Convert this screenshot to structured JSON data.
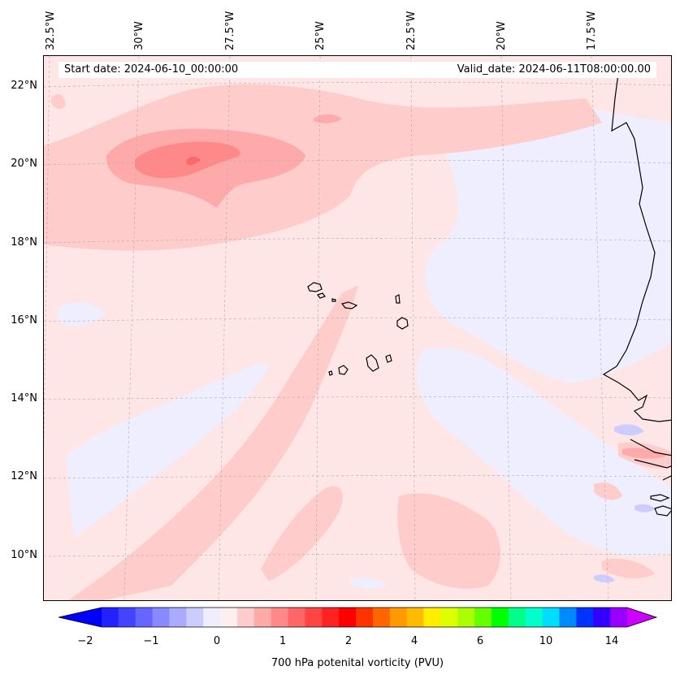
{
  "map": {
    "start_date_label": "Start date: 2024-06-10_00:00:00",
    "valid_date_label": "Valid_date: 2024-06-11T08:00:00.00",
    "longitude_labels": [
      "32.5°W",
      "30°W",
      "27.5°W",
      "25°W",
      "22.5°W",
      "20°W",
      "17.5°W"
    ],
    "latitude_labels": [
      "22°N",
      "20°N",
      "18°N",
      "16°N",
      "14°N",
      "12°N",
      "10°N"
    ],
    "background_color": "#ffe6e6"
  },
  "colorbar": {
    "label": "700 hPa potenital vorticity (PVU)",
    "tick_labels": [
      "−2",
      "−1",
      "0",
      "1",
      "2",
      "4",
      "6",
      "10",
      "14"
    ],
    "colors": [
      "#2222ff",
      "#4444ff",
      "#6666ff",
      "#8888ff",
      "#aaaaff",
      "#ccccff",
      "#eeeeff",
      "#ffeeee",
      "#ffcccc",
      "#ffaaaa",
      "#ff8888",
      "#ff6666",
      "#ff4444",
      "#ff2222",
      "#ff0000",
      "#ff3300",
      "#ff6600",
      "#ff9900",
      "#ffbb00",
      "#ffee00",
      "#ddff00",
      "#aaff00",
      "#66ff00",
      "#00ff00",
      "#00ff88",
      "#00ffcc",
      "#00ddff",
      "#0088ff",
      "#0033ff",
      "#3300ff",
      "#9900ff"
    ],
    "under_color": "#0000ff",
    "over_color": "#cc00ff"
  }
}
